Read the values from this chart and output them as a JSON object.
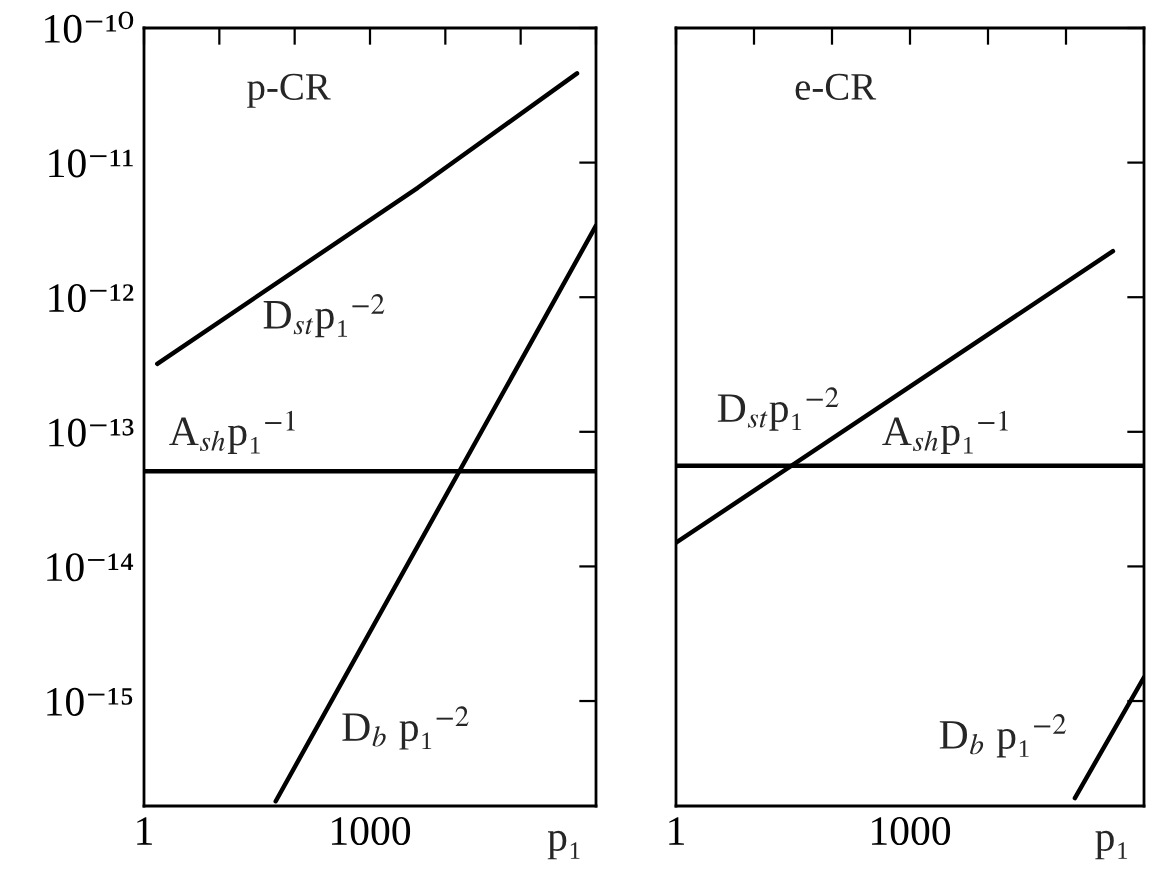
{
  "chart_data": [
    {
      "type": "line",
      "title": "p-CR",
      "xlabel": "p₁",
      "log": "xy",
      "grid": false,
      "legend": false,
      "marker": "none",
      "line_style": "solid",
      "xlim": [
        1,
        1000000
      ],
      "ylim": [
        1.66e-16,
        1e-10
      ],
      "xticks": [
        1,
        {
          "value": 10,
          "label": null
        },
        {
          "value": 100,
          "label": null
        },
        1000,
        {
          "value": 10000,
          "label": null
        },
        {
          "value": 100000,
          "label": null
        },
        {
          "value": 1000000,
          "label": null
        }
      ],
      "yticks": [
        {
          "value": 1e-15,
          "label": "10⁻¹⁵"
        },
        {
          "value": 1e-14,
          "label": "10⁻¹⁴"
        },
        {
          "value": 1e-13,
          "label": "10⁻¹³"
        },
        {
          "value": 1e-12,
          "label": "10⁻¹²"
        },
        {
          "value": 1e-11,
          "label": "10⁻¹¹"
        },
        {
          "value": 1e-10,
          "label": "10⁻¹⁰"
        }
      ],
      "series": [
        {
          "name": "D$_{st}$p₁$^{−2}$",
          "color": "#000000",
          "x": [
            1.5,
            4300,
            560000
          ],
          "values": [
            3.2e-13,
            6.5e-12,
            4.6e-11
          ]
        },
        {
          "name": "A$_{sh}$p₁$^{−1}$",
          "color": "#000000",
          "x": [
            1,
            1000000
          ],
          "values": [
            5.1e-14,
            5.1e-14
          ]
        },
        {
          "name": "D$_{b}$ p₁$^{−2}$",
          "color": "#000000",
          "x": [
            56,
            1000000
          ],
          "values": [
            1.8e-16,
            3.4e-12
          ]
        }
      ]
    },
    {
      "type": "line",
      "title": "e-CR",
      "xlabel": "p₁",
      "log": "xy",
      "grid": false,
      "legend": false,
      "marker": "none",
      "line_style": "solid",
      "tick_labels": "x",
      "xlim": [
        1,
        1000000
      ],
      "ylim": [
        1.66e-16,
        1e-10
      ],
      "xticks": [
        1,
        {
          "value": 10,
          "label": null
        },
        {
          "value": 100,
          "label": null
        },
        1000,
        {
          "value": 10000,
          "label": null
        },
        {
          "value": 100000,
          "label": null
        },
        {
          "value": 1000000,
          "label": null
        }
      ],
      "yticks": [
        {
          "value": 1e-15,
          "label": null
        },
        {
          "value": 1e-14,
          "label": null
        },
        {
          "value": 1e-13,
          "label": null
        },
        {
          "value": 1e-12,
          "label": null
        },
        {
          "value": 1e-11,
          "label": null
        },
        {
          "value": 1e-10,
          "label": null
        }
      ],
      "series": [
        {
          "name": "D$_{st}$p₁$^{−2}$",
          "color": "#000000",
          "x": [
            1,
            400000
          ],
          "values": [
            1.5e-14,
            2.2e-12
          ]
        },
        {
          "name": "A$_{sh}$p₁$^{−1}$",
          "color": "#000000",
          "x": [
            1,
            1000000
          ],
          "values": [
            5.6e-14,
            5.6e-14
          ]
        },
        {
          "name": "D$_{b}$ p₁$^{−2}$",
          "color": "#000000",
          "x": [
            130000,
            1000000
          ],
          "values": [
            1.9e-16,
            1.5e-15
          ]
        }
      ]
    }
  ]
}
